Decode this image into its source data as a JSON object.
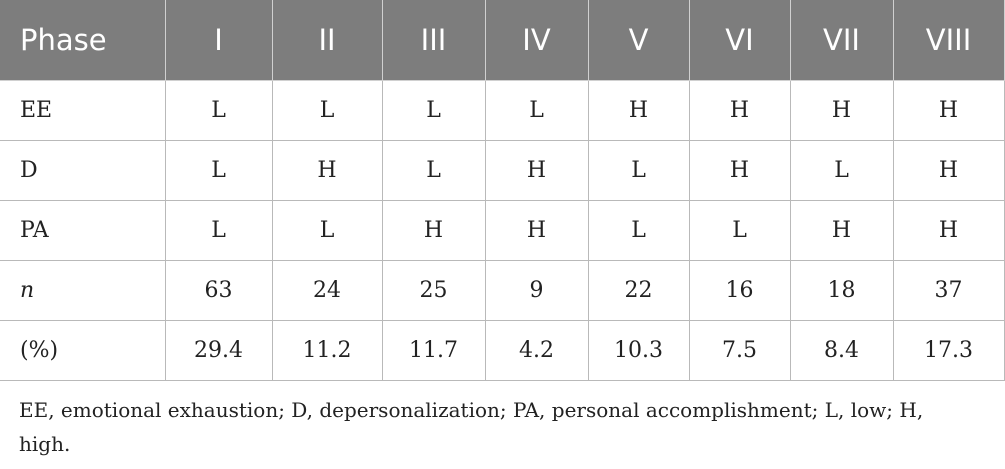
{
  "table": {
    "header": {
      "label": "Phase",
      "columns": [
        "I",
        "II",
        "III",
        "IV",
        "V",
        "VI",
        "VII",
        "VIII"
      ]
    },
    "rows": [
      {
        "label": "EE",
        "italic": false,
        "values": [
          "L",
          "L",
          "L",
          "L",
          "H",
          "H",
          "H",
          "H"
        ]
      },
      {
        "label": "D",
        "italic": false,
        "values": [
          "L",
          "H",
          "L",
          "H",
          "L",
          "H",
          "L",
          "H"
        ]
      },
      {
        "label": "PA",
        "italic": false,
        "values": [
          "L",
          "L",
          "H",
          "H",
          "L",
          "L",
          "H",
          "H"
        ]
      },
      {
        "label": "n",
        "italic": true,
        "values": [
          "63",
          "24",
          "25",
          "9",
          "22",
          "16",
          "18",
          "37"
        ]
      },
      {
        "label": "(%)",
        "italic": false,
        "values": [
          "29.4",
          "11.2",
          "11.7",
          "4.2",
          "10.3",
          "7.5",
          "8.4",
          "17.3"
        ]
      }
    ]
  },
  "footnote": "EE, emotional exhaustion; D, depersonalization; PA, personal accomplishment; L, low; H, high."
}
